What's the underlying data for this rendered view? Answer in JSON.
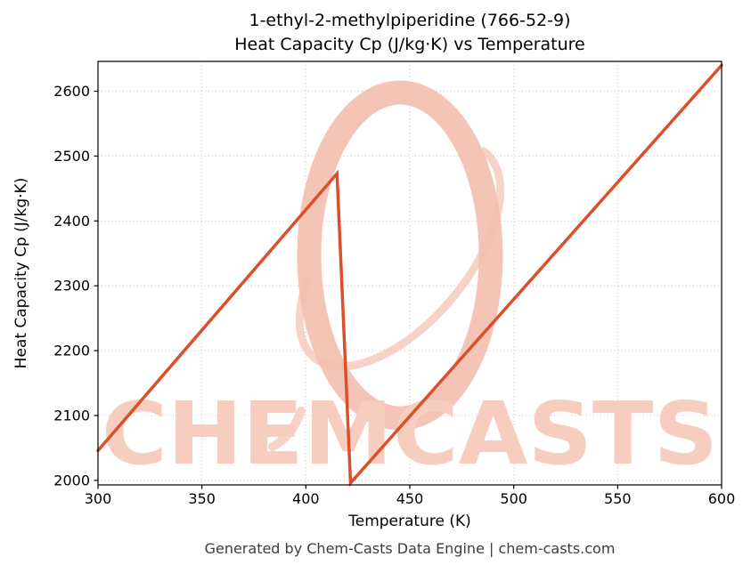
{
  "title": {
    "line1": "1-ethyl-2-methylpiperidine (766-52-9)",
    "line2": "Heat Capacity Cp (J/kg·K) vs Temperature"
  },
  "footer": {
    "text": "Generated by Chem-Casts Data Engine | chem-casts.com"
  },
  "watermark": {
    "text": "CHEMCASTS",
    "text_color": "#f6cdbf",
    "logo_color": "#f3bfae"
  },
  "chart_data": {
    "type": "line",
    "title": "1-ethyl-2-methylpiperidine (766-52-9) Heat Capacity Cp (J/kg·K) vs Temperature",
    "xlabel": "Temperature (K)",
    "ylabel": "Heat Capacity Cp (J/kg·K)",
    "xlim": [
      300,
      600
    ],
    "ylim": [
      1993,
      2646
    ],
    "xticks": [
      300,
      350,
      400,
      450,
      500,
      550,
      600
    ],
    "yticks": [
      2000,
      2100,
      2200,
      2300,
      2400,
      2500,
      2600
    ],
    "grid": true,
    "legend": false,
    "line_color": "#d9502a",
    "line_width": 3.5,
    "series": [
      {
        "name": "Heat Capacity Cp",
        "points": [
          [
            300,
            2046
          ],
          [
            415,
            2473
          ],
          [
            421.5,
            1996
          ],
          [
            600,
            2640
          ]
        ]
      }
    ]
  }
}
